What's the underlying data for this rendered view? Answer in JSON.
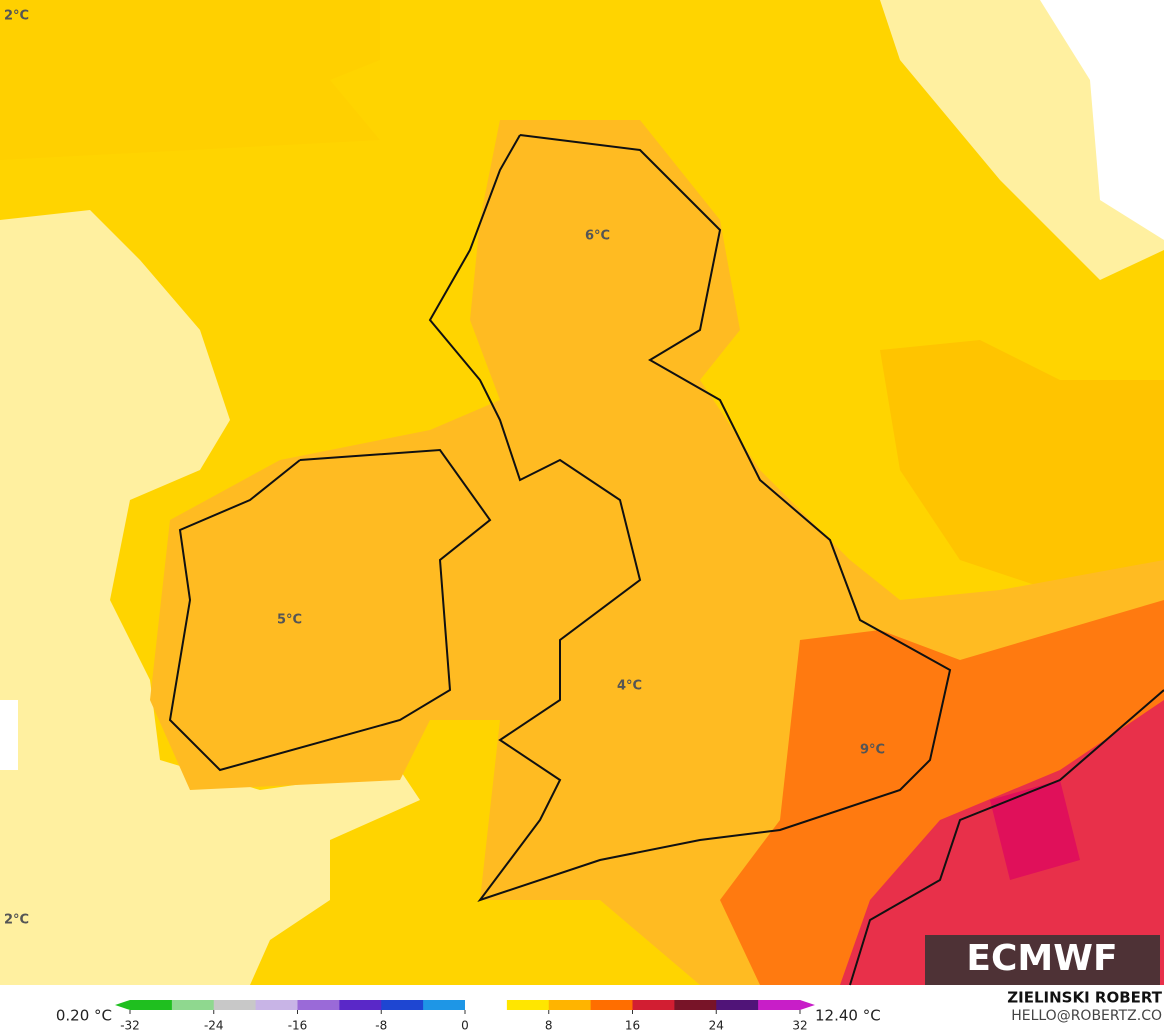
{
  "map": {
    "corner_labels": [
      "2°C",
      "2°C"
    ],
    "temperature_labels": [
      "6°C",
      "5°C",
      "4°C",
      "9°C"
    ],
    "logo": "ECMWF",
    "author": "ZIELINSKI ROBERT",
    "contact": "HELLO@ROBERTZ.CO"
  },
  "colorbar": {
    "min_label": "0.20 °C",
    "max_label": "12.40 °C",
    "range": [
      -32,
      32
    ],
    "ticks": [
      -32,
      -24,
      -16,
      -8,
      0,
      8,
      16,
      24,
      32
    ],
    "colors": [
      "#1fbf1f",
      "#8fd88f",
      "#c8c8c8",
      "#c8b4e6",
      "#9a6ad8",
      "#5a28c8",
      "#1e46d2",
      "#1e96e6",
      "#ffffff",
      "#ffe600",
      "#ffb400",
      "#ff6e00",
      "#d21e32",
      "#781428",
      "#501478",
      "#c81ec8"
    ]
  }
}
